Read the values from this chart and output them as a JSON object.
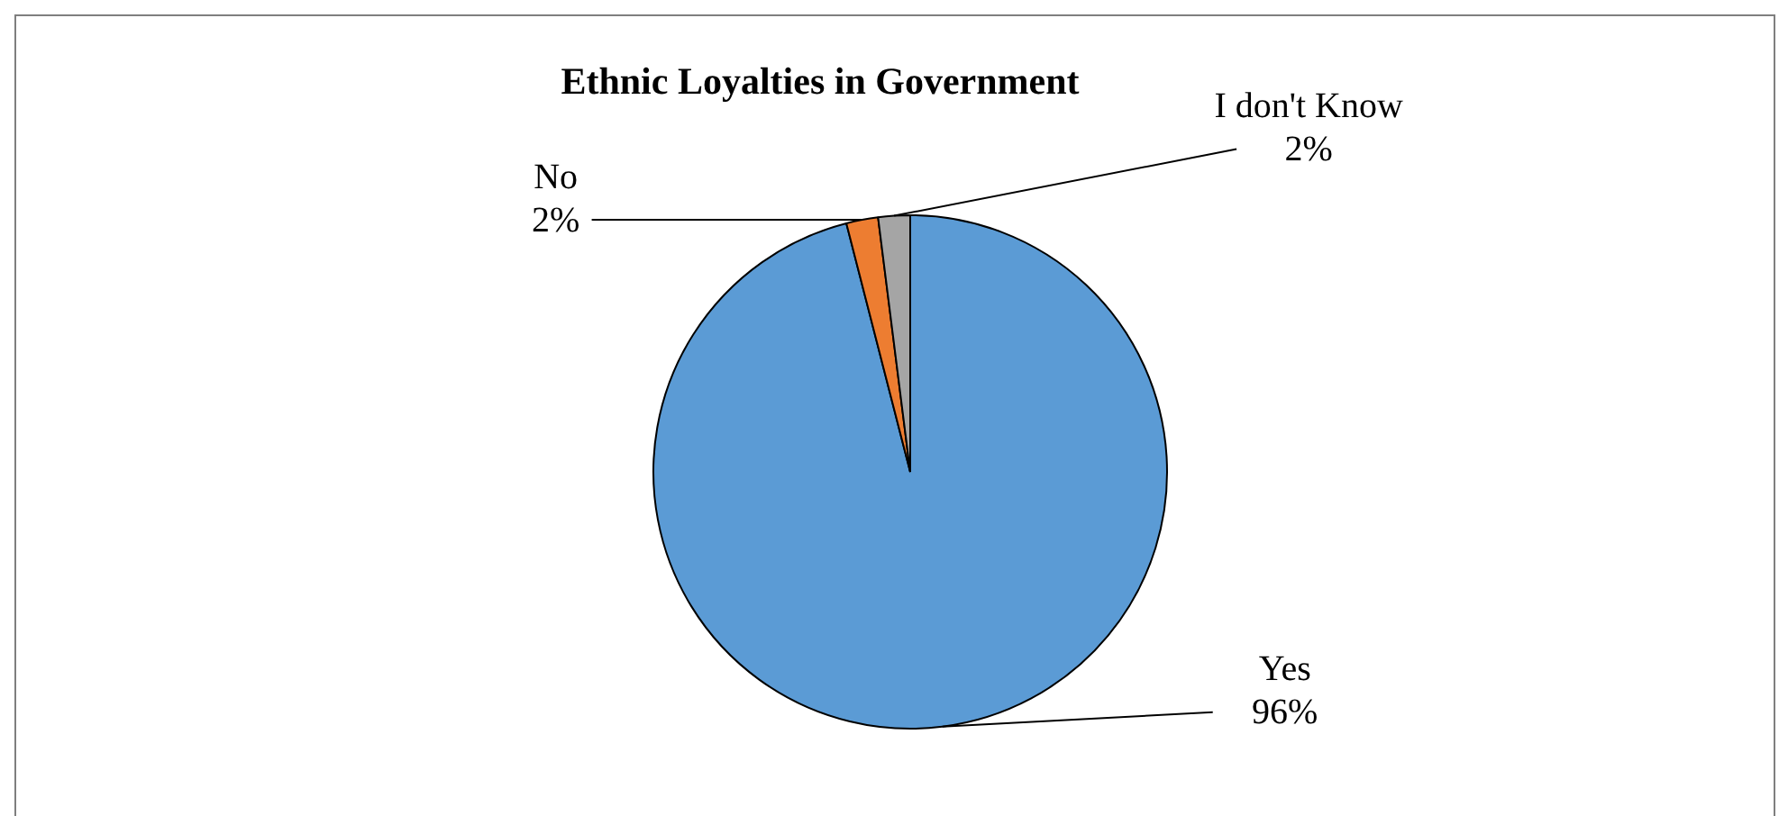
{
  "chart_data": {
    "type": "pie",
    "title": "Ethnic Loyalties in Government",
    "categories": [
      "Yes",
      "No",
      "I don't Know"
    ],
    "values": [
      96,
      2,
      2
    ],
    "colors": [
      "#5b9bd5",
      "#ed7d31",
      "#a5a5a5"
    ],
    "value_labels": [
      "96%",
      "2%",
      "2%"
    ],
    "legend": false
  }
}
